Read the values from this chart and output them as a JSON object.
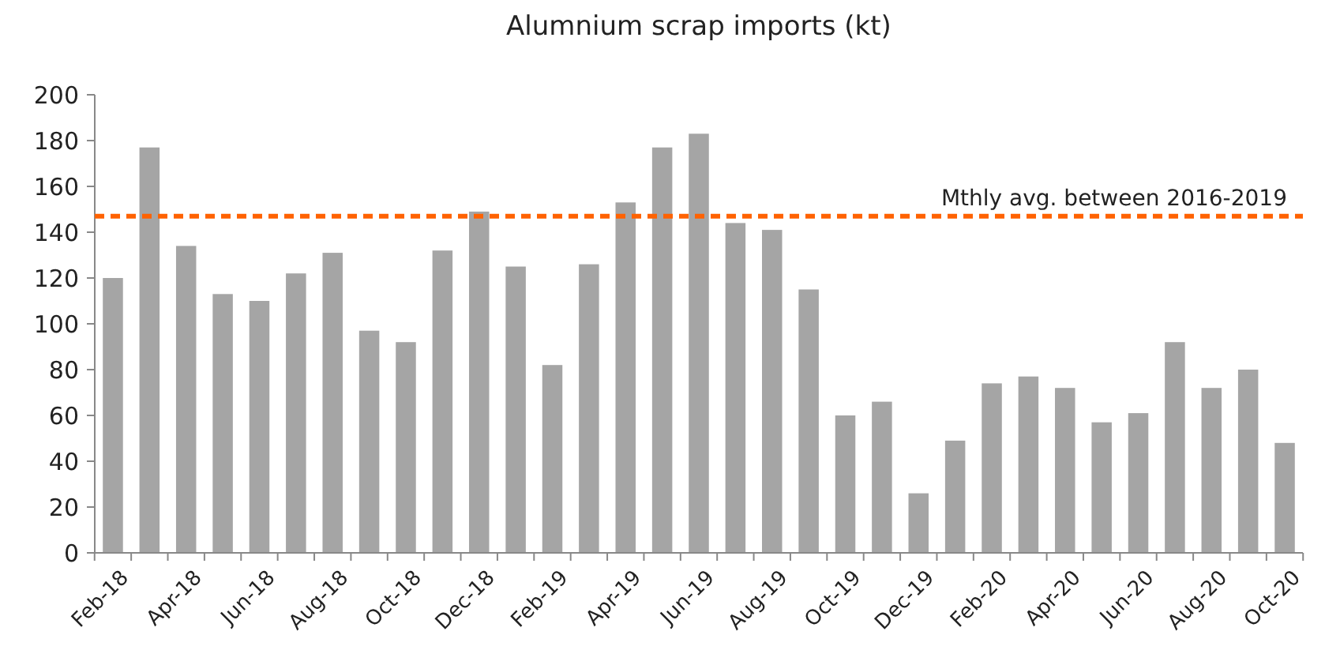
{
  "chart_data": {
    "type": "bar",
    "title": "Alumnium scrap imports (kt)",
    "categories": [
      "Feb-18",
      null,
      "Apr-18",
      null,
      "Jun-18",
      null,
      "Aug-18",
      null,
      "Oct-18",
      null,
      "Dec-18",
      null,
      "Feb-19",
      null,
      "Apr-19",
      null,
      "Jun-19",
      null,
      "Aug-19",
      null,
      "Oct-19",
      null,
      "Dec-19",
      null,
      "Feb-20",
      null,
      "Apr-20",
      null,
      "Jun-20",
      null,
      "Aug-20",
      null,
      "Oct-20"
    ],
    "values": [
      120,
      177,
      134,
      113,
      110,
      122,
      131,
      97,
      92,
      132,
      149,
      125,
      82,
      126,
      153,
      177,
      183,
      144,
      141,
      115,
      60,
      66,
      26,
      49,
      74,
      77,
      72,
      57,
      61,
      92,
      72,
      80,
      48
    ],
    "color": "#a5a5a5",
    "ylim": [
      0,
      200
    ],
    "yticks": [
      0,
      20,
      40,
      60,
      80,
      100,
      120,
      140,
      160,
      180,
      200
    ],
    "grid": false,
    "ref_lines": [
      {
        "axis": "y",
        "value": 147,
        "label": "Mthly avg. between 2016-2019",
        "color": "#ff6200",
        "line_style": "dashed"
      }
    ]
  }
}
